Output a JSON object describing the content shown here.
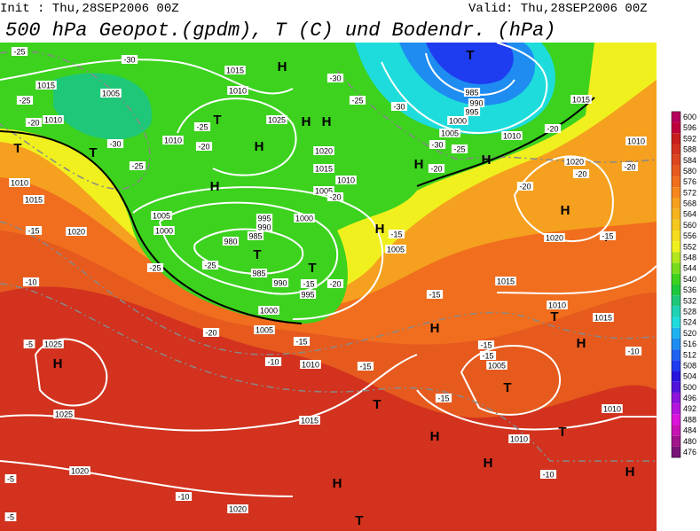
{
  "header": {
    "init": "Init : Thu,28SEP2006 00Z",
    "valid": "Valid: Thu,28SEP2006 00Z",
    "title": "500 hPa Geopot.(gpdm), T (C) und Bodendr. (hPa)"
  },
  "colorbar": {
    "levels": [
      "600",
      "596",
      "592",
      "588",
      "584",
      "580",
      "576",
      "572",
      "568",
      "564",
      "560",
      "556",
      "552",
      "548",
      "544",
      "540",
      "536",
      "532",
      "528",
      "524",
      "520",
      "516",
      "512",
      "508",
      "504",
      "500",
      "496",
      "492",
      "488",
      "484",
      "480",
      "476"
    ],
    "colors": [
      "#b4005a",
      "#c0003c",
      "#c81e1e",
      "#d2321e",
      "#dc461e",
      "#e65a1e",
      "#f06e1e",
      "#f5871e",
      "#f5a01e",
      "#f5b41e",
      "#f5c81e",
      "#f5dc1e",
      "#f0f01e",
      "#b4e61e",
      "#78dc1e",
      "#3cd21e",
      "#1ec83c",
      "#1ec878",
      "#1ed2b4",
      "#1edcdc",
      "#1eb4f0",
      "#1e8cf0",
      "#1e64f0",
      "#1e3cf0",
      "#2814dc",
      "#5014dc",
      "#8c14dc",
      "#b414dc",
      "#dc14dc",
      "#c814b4",
      "#a0148c",
      "#781478"
    ]
  },
  "map": {
    "centers": [
      "T",
      "H",
      "T",
      "H",
      "H",
      "H",
      "H",
      "T",
      "T",
      "H",
      "H",
      "T",
      "T",
      "H",
      "H",
      "T",
      "T",
      "H",
      "H",
      "T",
      "H",
      "T",
      "H",
      "H",
      "H",
      "H",
      "T",
      "T"
    ],
    "contour_labels": [
      "1015",
      "1005",
      "1010",
      "1010",
      "1015",
      "1010",
      "1025",
      "1020",
      "1015",
      "1010",
      "1005",
      "1000",
      "995",
      "990",
      "985",
      "980",
      "985",
      "990",
      "995",
      "1000",
      "1005",
      "1010",
      "1015",
      "1020",
      "1020",
      "1025",
      "1025",
      "1020",
      "1015",
      "1010",
      "1005",
      "1000",
      "985",
      "990",
      "995",
      "1000",
      "1005",
      "1010",
      "1015",
      "1010",
      "1020",
      "1020",
      "1015",
      "1010",
      "1015",
      "1005",
      "1005",
      "1010",
      "1010",
      "-25",
      "-30",
      "-25",
      "-20",
      "-30",
      "-25",
      "-25",
      "-20",
      "-30",
      "-30",
      "-25",
      "-20",
      "-30",
      "-25",
      "-20",
      "-20",
      "-20",
      "-20",
      "-20",
      "-15",
      "-15",
      "-15",
      "-15",
      "-10",
      "-25",
      "-25",
      "-15",
      "-20",
      "-20",
      "-15",
      "-10",
      "-15",
      "-15",
      "-15",
      "-10",
      "-15",
      "-5",
      "-10",
      "-10",
      "-5",
      "-5"
    ]
  }
}
